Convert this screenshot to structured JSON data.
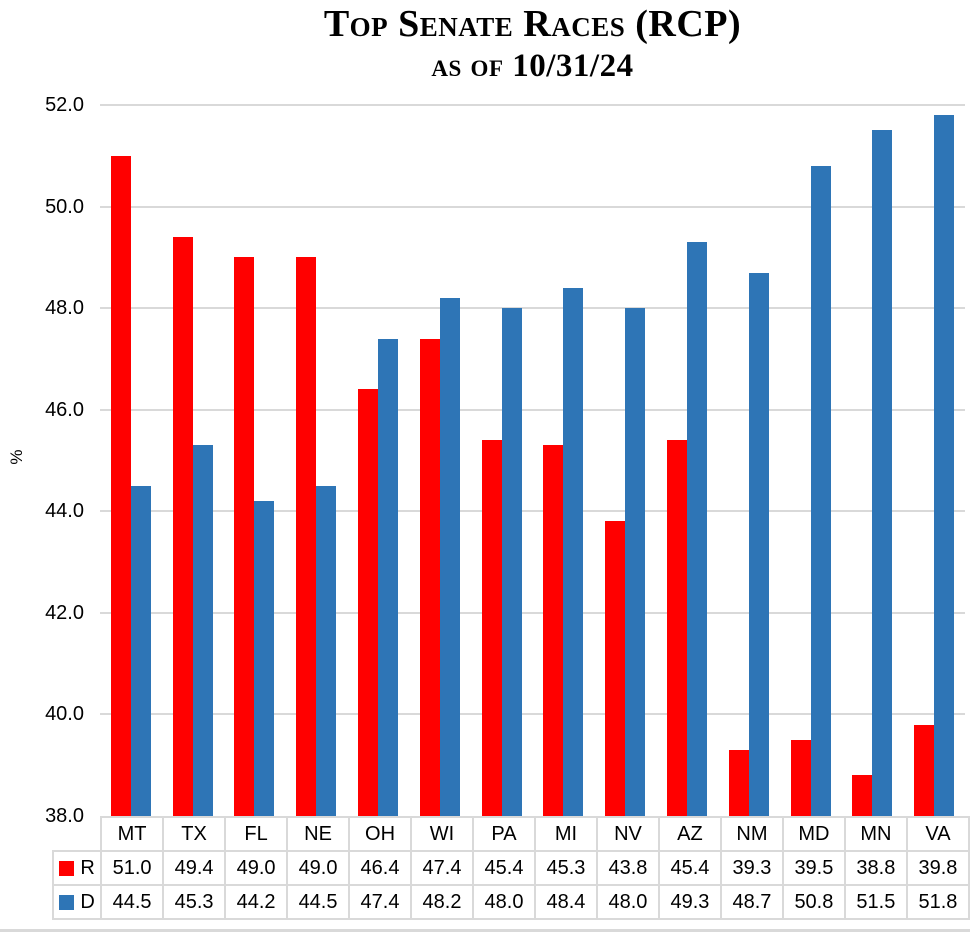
{
  "title": "Top Senate Races (RCP)",
  "subtitle": "as of 10/31/24",
  "chart_data": {
    "type": "bar",
    "title": "Top Senate Races (RCP)",
    "subtitle": "as of 10/31/24",
    "categories": [
      "MT",
      "TX",
      "FL",
      "NE",
      "OH",
      "WI",
      "PA",
      "MI",
      "NV",
      "AZ",
      "NM",
      "MD",
      "MN",
      "VA"
    ],
    "series": [
      {
        "name": "R",
        "color": "#ff0000",
        "values": [
          51.0,
          49.4,
          49.0,
          49.0,
          46.4,
          47.4,
          45.4,
          45.3,
          43.8,
          45.4,
          39.3,
          39.5,
          38.8,
          39.8
        ]
      },
      {
        "name": "D",
        "color": "#2e75b6",
        "values": [
          44.5,
          45.3,
          44.2,
          44.5,
          47.4,
          48.2,
          48.0,
          48.4,
          48.0,
          49.3,
          48.7,
          50.8,
          51.5,
          51.8
        ]
      }
    ],
    "xlabel": "",
    "ylabel": "%",
    "ylim": [
      38.0,
      52.0
    ],
    "yticks": [
      "52.0",
      "50.0",
      "48.0",
      "46.0",
      "44.0",
      "42.0",
      "40.0",
      "38.0"
    ],
    "value_format_decimals": 1,
    "grid": true,
    "grid_color": "#d9d9d9",
    "legend_position": "data-table-left",
    "data_table": true
  }
}
